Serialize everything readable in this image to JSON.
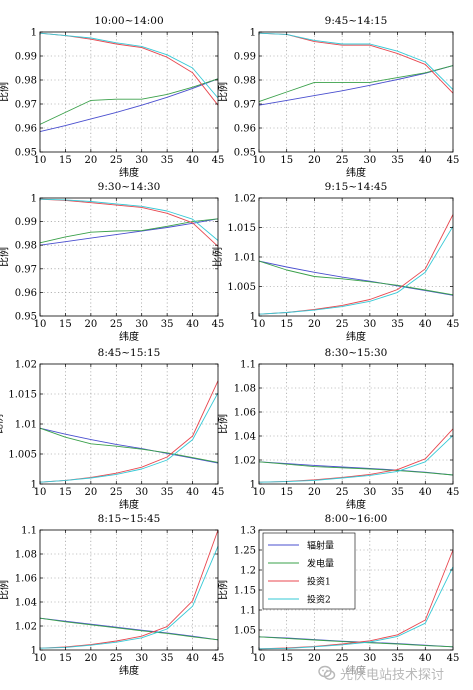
{
  "colors": {
    "radiation": "#4a4fcf",
    "power": "#3aa04a",
    "invest1": "#e8474f",
    "invest2": "#36c9d6",
    "grid": "#8a8a8a",
    "axis": "#000000"
  },
  "watermark": {
    "text": "光伏电站技术探讨",
    "icon": "wechat-logo-icon"
  },
  "chart_data": [
    {
      "type": "line",
      "title": "10:00~14:00",
      "xlabel": "纬度",
      "ylabel": "比例",
      "x": [
        10,
        15,
        20,
        25,
        30,
        35,
        40,
        45
      ],
      "xlim": [
        10,
        45
      ],
      "ylim": [
        0.95,
        1
      ],
      "yticks": [
        0.95,
        0.96,
        0.97,
        0.98,
        0.99,
        1
      ],
      "ytick_labels": [
        "0.95",
        "0.96",
        "0.97",
        "0.98",
        "0.99",
        "1"
      ],
      "grid": true,
      "legend": null,
      "series": [
        {
          "key": "radiation",
          "values": [
            0.9585,
            0.961,
            0.9638,
            0.9665,
            0.9695,
            0.9728,
            0.9765,
            0.9805
          ]
        },
        {
          "key": "power",
          "values": [
            0.9615,
            0.9665,
            0.9715,
            0.972,
            0.972,
            0.974,
            0.977,
            0.9805
          ]
        },
        {
          "key": "invest1",
          "values": [
            0.9995,
            0.9985,
            0.997,
            0.995,
            0.9935,
            0.9895,
            0.983,
            0.9695
          ]
        },
        {
          "key": "invest2",
          "values": [
            0.9995,
            0.9985,
            0.9975,
            0.9955,
            0.994,
            0.9905,
            0.985,
            0.9725
          ]
        }
      ]
    },
    {
      "type": "line",
      "title": "9:45~14:15",
      "xlabel": "纬度",
      "ylabel": "比例",
      "x": [
        10,
        15,
        20,
        25,
        30,
        35,
        40,
        45
      ],
      "xlim": [
        10,
        45
      ],
      "ylim": [
        0.95,
        1
      ],
      "yticks": [
        0.95,
        0.96,
        0.97,
        0.98,
        0.99,
        1
      ],
      "ytick_labels": [
        "0.95",
        "0.96",
        "0.97",
        "0.98",
        "0.99",
        "1"
      ],
      "grid": true,
      "legend": null,
      "series": [
        {
          "key": "radiation",
          "values": [
            0.9695,
            0.9715,
            0.9735,
            0.9755,
            0.9778,
            0.9802,
            0.9828,
            0.986
          ]
        },
        {
          "key": "power",
          "values": [
            0.971,
            0.975,
            0.979,
            0.979,
            0.979,
            0.981,
            0.983,
            0.986
          ]
        },
        {
          "key": "invest1",
          "values": [
            0.9995,
            0.999,
            0.996,
            0.9945,
            0.9945,
            0.991,
            0.9865,
            0.9745
          ]
        },
        {
          "key": "invest2",
          "values": [
            0.9995,
            0.999,
            0.9965,
            0.995,
            0.995,
            0.992,
            0.9875,
            0.976
          ]
        }
      ]
    },
    {
      "type": "line",
      "title": "9:30~14:30",
      "xlabel": "纬度",
      "ylabel": "比例",
      "x": [
        10,
        15,
        20,
        25,
        30,
        35,
        40,
        45
      ],
      "xlim": [
        10,
        45
      ],
      "ylim": [
        0.95,
        1
      ],
      "yticks": [
        0.95,
        0.96,
        0.97,
        0.98,
        0.99,
        1
      ],
      "ytick_labels": [
        "0.95",
        "0.96",
        "0.97",
        "0.98",
        "0.99",
        "1"
      ],
      "grid": true,
      "legend": null,
      "series": [
        {
          "key": "radiation",
          "values": [
            0.98,
            0.9815,
            0.983,
            0.9845,
            0.986,
            0.9875,
            0.9893,
            0.9912
          ]
        },
        {
          "key": "power",
          "values": [
            0.981,
            0.9835,
            0.9855,
            0.986,
            0.9862,
            0.988,
            0.99,
            0.9912
          ]
        },
        {
          "key": "invest1",
          "values": [
            0.9995,
            0.999,
            0.998,
            0.997,
            0.996,
            0.9935,
            0.9895,
            0.9795
          ]
        },
        {
          "key": "invest2",
          "values": [
            0.9995,
            0.9992,
            0.9985,
            0.9975,
            0.9965,
            0.9945,
            0.991,
            0.982
          ]
        }
      ]
    },
    {
      "type": "line",
      "title": "9:15~14:45",
      "xlabel": "纬度",
      "ylabel": "比例",
      "x": [
        10,
        15,
        20,
        25,
        30,
        35,
        40,
        45
      ],
      "xlim": [
        10,
        45
      ],
      "ylim": [
        1,
        1.02
      ],
      "yticks": [
        1,
        1.005,
        1.01,
        1.015,
        1.02
      ],
      "ytick_labels": [
        "1",
        "1.005",
        "1.01",
        "1.015",
        "1.02"
      ],
      "grid": true,
      "legend": null,
      "series": [
        {
          "key": "radiation",
          "values": [
            1.0093,
            1.0083,
            1.0074,
            1.0066,
            1.0059,
            1.0051,
            1.0043,
            1.0035
          ]
        },
        {
          "key": "power",
          "values": [
            1.0093,
            1.0078,
            1.0067,
            1.0063,
            1.0058,
            1.0052,
            1.0044,
            1.0036
          ]
        },
        {
          "key": "invest1",
          "values": [
            1.0003,
            1.0006,
            1.0011,
            1.0018,
            1.0028,
            1.0045,
            1.008,
            1.0172
          ]
        },
        {
          "key": "invest2",
          "values": [
            1.0003,
            1.0006,
            1.001,
            1.0016,
            1.0025,
            1.004,
            1.0074,
            1.0152
          ]
        }
      ]
    },
    {
      "type": "line",
      "title": "8:45~15:15",
      "xlabel": "纬度",
      "ylabel": "比例",
      "x": [
        10,
        15,
        20,
        25,
        30,
        35,
        40,
        45
      ],
      "xlim": [
        10,
        45
      ],
      "ylim": [
        1,
        1.02
      ],
      "yticks": [
        1,
        1.005,
        1.01,
        1.015,
        1.02
      ],
      "ytick_labels": [
        "1",
        "1.005",
        "1.01",
        "1.015",
        "1.02"
      ],
      "grid": true,
      "legend": null,
      "series": [
        {
          "key": "radiation",
          "values": [
            1.0093,
            1.0083,
            1.0074,
            1.0066,
            1.0059,
            1.0051,
            1.0043,
            1.0035
          ]
        },
        {
          "key": "power",
          "values": [
            1.0093,
            1.0078,
            1.0067,
            1.0063,
            1.0058,
            1.0052,
            1.0044,
            1.0036
          ]
        },
        {
          "key": "invest1",
          "values": [
            1.0003,
            1.0006,
            1.0011,
            1.0018,
            1.0028,
            1.0045,
            1.008,
            1.0172
          ]
        },
        {
          "key": "invest2",
          "values": [
            1.0003,
            1.0006,
            1.001,
            1.0016,
            1.0025,
            1.004,
            1.0074,
            1.0152
          ]
        }
      ]
    },
    {
      "type": "line",
      "title": "8:30~15:30",
      "xlabel": "纬度",
      "ylabel": "比例",
      "x": [
        10,
        15,
        20,
        25,
        30,
        35,
        40,
        45
      ],
      "xlim": [
        10,
        45
      ],
      "ylim": [
        1,
        1.1
      ],
      "yticks": [
        1,
        1.02,
        1.04,
        1.06,
        1.08,
        1.1
      ],
      "ytick_labels": [
        "1",
        "1.02",
        "1.04",
        "1.06",
        "1.08",
        "1.1"
      ],
      "grid": true,
      "legend": null,
      "series": [
        {
          "key": "radiation",
          "values": [
            1.0185,
            1.017,
            1.0155,
            1.0142,
            1.013,
            1.0115,
            1.0098,
            1.0075
          ]
        },
        {
          "key": "power",
          "values": [
            1.0185,
            1.0165,
            1.0145,
            1.0135,
            1.0125,
            1.0112,
            1.0095,
            1.0075
          ]
        },
        {
          "key": "invest1",
          "values": [
            1.0015,
            1.0022,
            1.0035,
            1.0055,
            1.008,
            1.012,
            1.021,
            1.046
          ]
        },
        {
          "key": "invest2",
          "values": [
            1.0015,
            1.002,
            1.003,
            1.005,
            1.0072,
            1.0105,
            1.0185,
            1.0405
          ]
        }
      ]
    },
    {
      "type": "line",
      "title": "8:15~15:45",
      "xlabel": "纬度",
      "ylabel": "比例",
      "x": [
        10,
        15,
        20,
        25,
        30,
        35,
        40,
        45
      ],
      "xlim": [
        10,
        45
      ],
      "ylim": [
        1,
        1.1
      ],
      "yticks": [
        1,
        1.02,
        1.04,
        1.06,
        1.08,
        1.1
      ],
      "ytick_labels": [
        "1",
        "1.02",
        "1.04",
        "1.06",
        "1.08",
        "1.1"
      ],
      "grid": true,
      "legend": null,
      "series": [
        {
          "key": "radiation",
          "values": [
            1.0265,
            1.024,
            1.0215,
            1.019,
            1.0165,
            1.0142,
            1.0115,
            1.0085
          ]
        },
        {
          "key": "power",
          "values": [
            1.0265,
            1.0235,
            1.021,
            1.0185,
            1.016,
            1.0138,
            1.011,
            1.0085
          ]
        },
        {
          "key": "invest1",
          "values": [
            1.0015,
            1.0025,
            1.0045,
            1.0075,
            1.0115,
            1.0195,
            1.041,
            1.1
          ]
        },
        {
          "key": "invest2",
          "values": [
            1.0015,
            1.0022,
            1.004,
            1.0065,
            1.0102,
            1.0175,
            1.0365,
            1.0865
          ]
        }
      ]
    },
    {
      "type": "line",
      "title": "8:00~16:00",
      "xlabel": "纬度",
      "ylabel": "比例",
      "x": [
        10,
        15,
        20,
        25,
        30,
        35,
        40,
        45
      ],
      "xlim": [
        10,
        45
      ],
      "ylim": [
        1,
        1.3
      ],
      "yticks": [
        1,
        1.05,
        1.1,
        1.15,
        1.2,
        1.25,
        1.3
      ],
      "ytick_labels": [
        "1",
        "1.05",
        "1.1",
        "1.15",
        "1.2",
        "1.25",
        "1.3"
      ],
      "grid": true,
      "legend": "top-left",
      "legend_labels": [
        "辐射量",
        "发电量",
        "投资1",
        "投资2"
      ],
      "series": [
        {
          "key": "radiation",
          "name": "辐射量",
          "values": [
            1.033,
            1.03,
            1.026,
            1.022,
            1.019,
            1.016,
            1.012,
            1.008
          ]
        },
        {
          "key": "power",
          "name": "发电量",
          "values": [
            1.033,
            1.029,
            1.025,
            1.021,
            1.018,
            1.015,
            1.011,
            1.008
          ]
        },
        {
          "key": "invest1",
          "name": "投资1",
          "values": [
            1.003,
            1.005,
            1.009,
            1.015,
            1.023,
            1.038,
            1.075,
            1.25
          ]
        },
        {
          "key": "invest2",
          "name": "投资2",
          "values": [
            1.003,
            1.004,
            1.008,
            1.013,
            1.02,
            1.034,
            1.067,
            1.208
          ]
        }
      ]
    }
  ]
}
